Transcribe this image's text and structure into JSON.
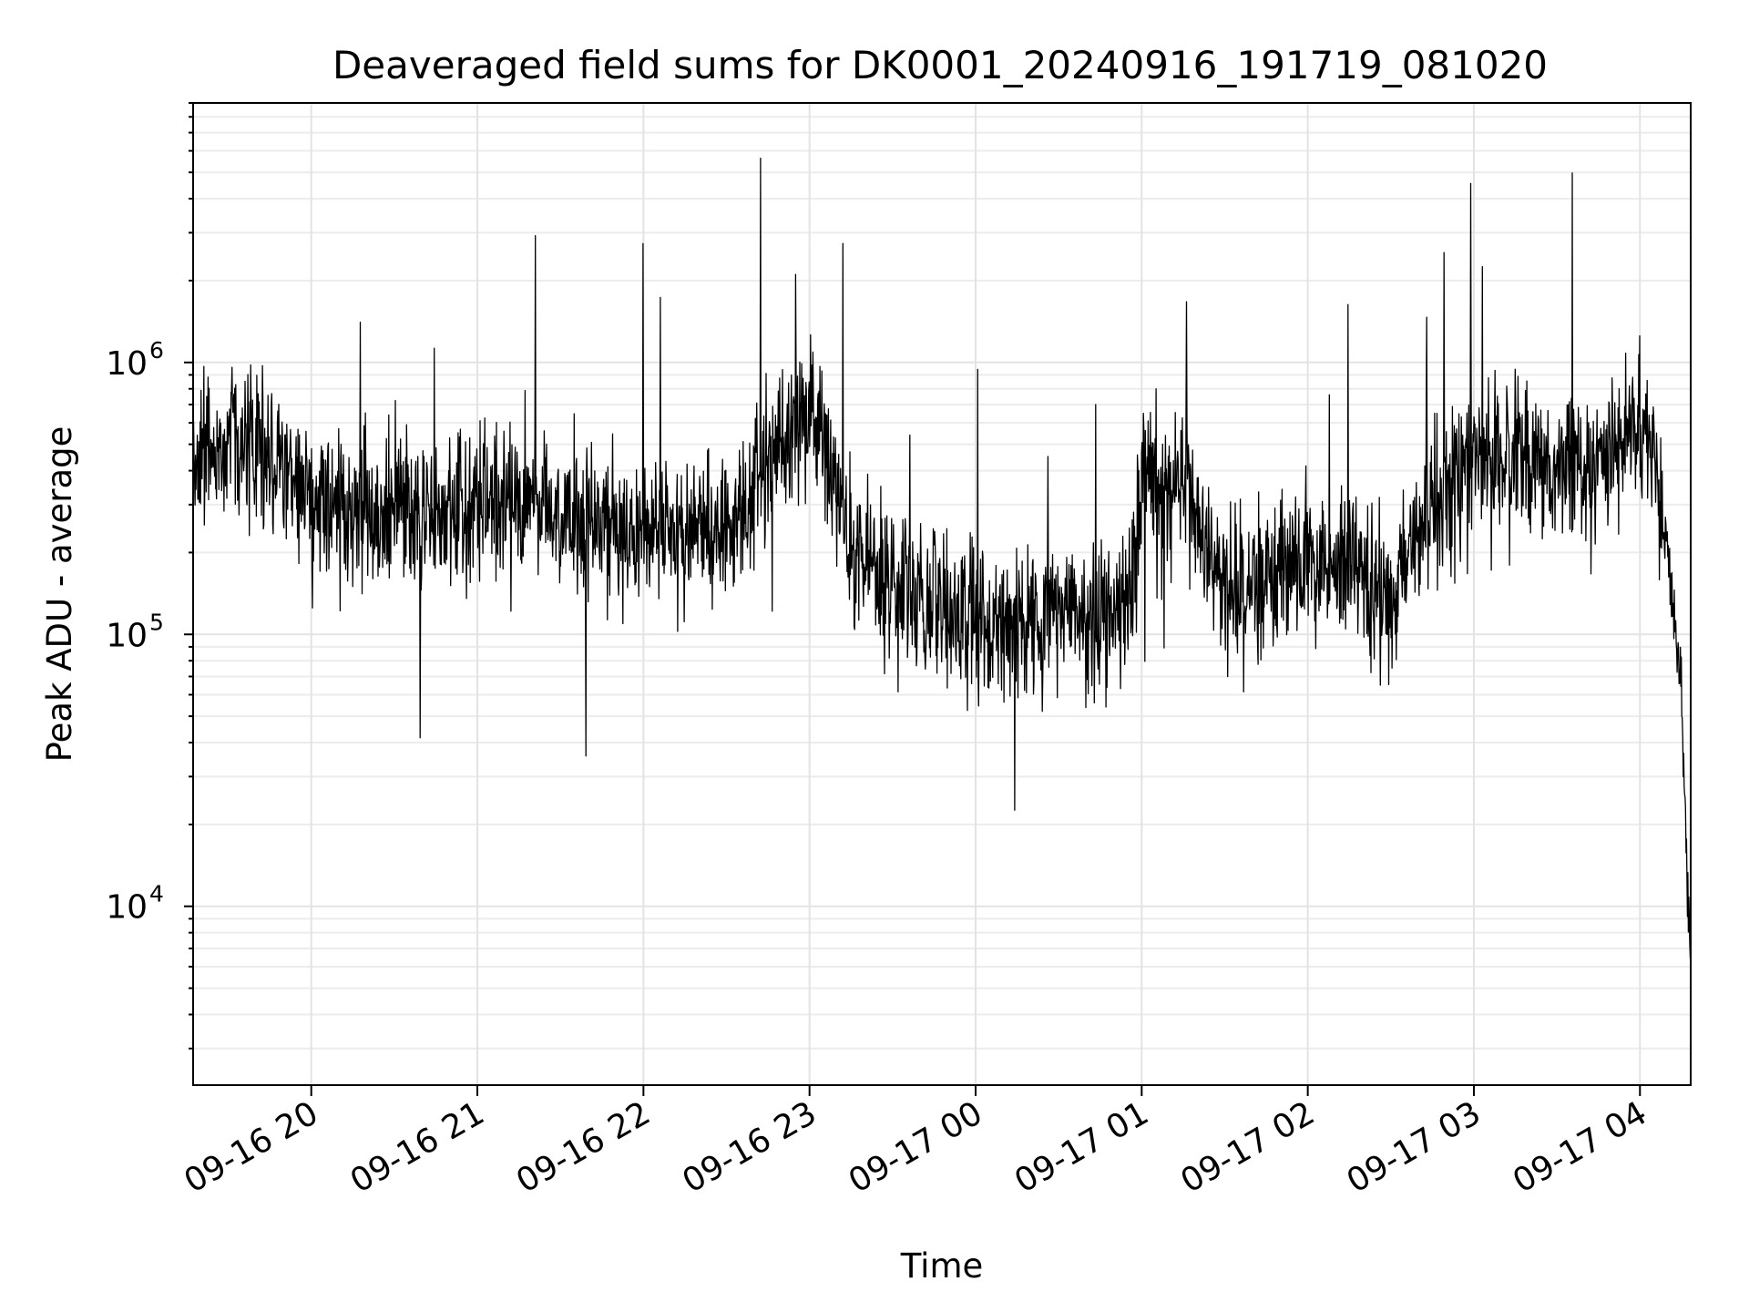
{
  "chart_data": {
    "type": "line",
    "title": "Deaveraged field sums for DK0001_20240916_191719_081020",
    "xlabel": "Time",
    "ylabel": "Peak ADU - average",
    "yscale": "log",
    "ylim": [
      2200,
      9000000
    ],
    "xlim": [
      "2024-09-16 19:17:19",
      "2024-09-17 04:18:20"
    ],
    "grid": true,
    "line_color": "#000000",
    "x_ticks": [
      {
        "value": "2024-09-16 20:00",
        "label": "09-16 20"
      },
      {
        "value": "2024-09-16 21:00",
        "label": "09-16 21"
      },
      {
        "value": "2024-09-16 22:00",
        "label": "09-16 22"
      },
      {
        "value": "2024-09-16 23:00",
        "label": "09-16 23"
      },
      {
        "value": "2024-09-17 00:00",
        "label": "09-17 00"
      },
      {
        "value": "2024-09-17 01:00",
        "label": "09-17 01"
      },
      {
        "value": "2024-09-17 02:00",
        "label": "09-17 02"
      },
      {
        "value": "2024-09-17 03:00",
        "label": "09-17 03"
      },
      {
        "value": "2024-09-17 04:00",
        "label": "09-17 04"
      }
    ],
    "y_ticks": [
      {
        "value": 10000,
        "base": "10",
        "exp": "4"
      },
      {
        "value": 100000,
        "base": "10",
        "exp": "5"
      },
      {
        "value": 1000000,
        "base": "10",
        "exp": "6"
      }
    ],
    "series": [
      {
        "x": [
          "2024-09-16 19:17",
          "2024-09-16 19:30",
          "2024-09-16 19:45",
          "2024-09-16 20:00",
          "2024-09-16 20:15",
          "2024-09-16 20:30",
          "2024-09-16 20:45",
          "2024-09-16 21:00",
          "2024-09-16 21:15",
          "2024-09-16 21:30",
          "2024-09-16 21:45",
          "2024-09-16 22:00",
          "2024-09-16 22:15",
          "2024-09-16 22:30",
          "2024-09-16 22:45",
          "2024-09-16 23:00",
          "2024-09-16 23:05",
          "2024-09-16 23:15",
          "2024-09-16 23:30",
          "2024-09-16 23:45",
          "2024-09-17 00:00",
          "2024-09-17 00:15",
          "2024-09-17 00:30",
          "2024-09-17 00:45",
          "2024-09-17 00:55",
          "2024-09-17 01:00",
          "2024-09-17 01:15",
          "2024-09-17 01:30",
          "2024-09-17 01:45",
          "2024-09-17 02:00",
          "2024-09-17 02:15",
          "2024-09-17 02:30",
          "2024-09-17 02:45",
          "2024-09-17 03:00",
          "2024-09-17 03:15",
          "2024-09-17 03:30",
          "2024-09-17 03:45",
          "2024-09-17 04:00",
          "2024-09-17 04:05",
          "2024-09-17 04:10",
          "2024-09-17 04:15",
          "2024-09-17 04:18"
        ],
        "values": [
          400000,
          500000,
          450000,
          320000,
          280000,
          300000,
          270000,
          290000,
          300000,
          260000,
          240000,
          250000,
          230000,
          240000,
          450000,
          650000,
          550000,
          200000,
          150000,
          130000,
          110000,
          110000,
          120000,
          115000,
          120000,
          350000,
          370000,
          140000,
          150000,
          180000,
          170000,
          140000,
          300000,
          450000,
          450000,
          380000,
          400000,
          600000,
          450000,
          200000,
          60000,
          7000
        ]
      }
    ]
  }
}
